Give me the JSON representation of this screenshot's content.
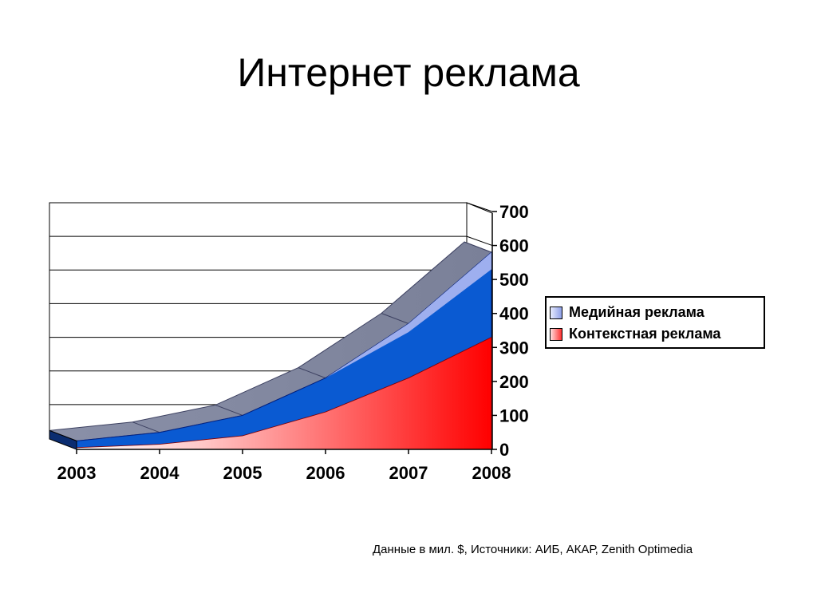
{
  "slide": {
    "title": "Интернет реклама",
    "source_note": "Данные в мил. $, Источники: АИБ, АКАР, Zenith Optimedia"
  },
  "chart_data": {
    "type": "area",
    "stacked": true,
    "style": "3d",
    "title": "",
    "xlabel": "",
    "ylabel": "",
    "categories": [
      "2003",
      "2004",
      "2005",
      "2006",
      "2007",
      "2008"
    ],
    "ylim": [
      0,
      700
    ],
    "yticks": [
      0,
      100,
      200,
      300,
      400,
      500,
      600,
      700
    ],
    "grid": true,
    "legend_position": "right",
    "series": [
      {
        "name": "Контекстная реклама",
        "values": [
          5,
          15,
          40,
          110,
          210,
          330
        ],
        "color": "#ff2020",
        "color_light": "#ffd0d0"
      },
      {
        "name": "Медийная реклама",
        "values": [
          20,
          35,
          60,
          100,
          160,
          250
        ],
        "color": "#0a5ad2",
        "color_light": "#dde4fb"
      }
    ]
  }
}
